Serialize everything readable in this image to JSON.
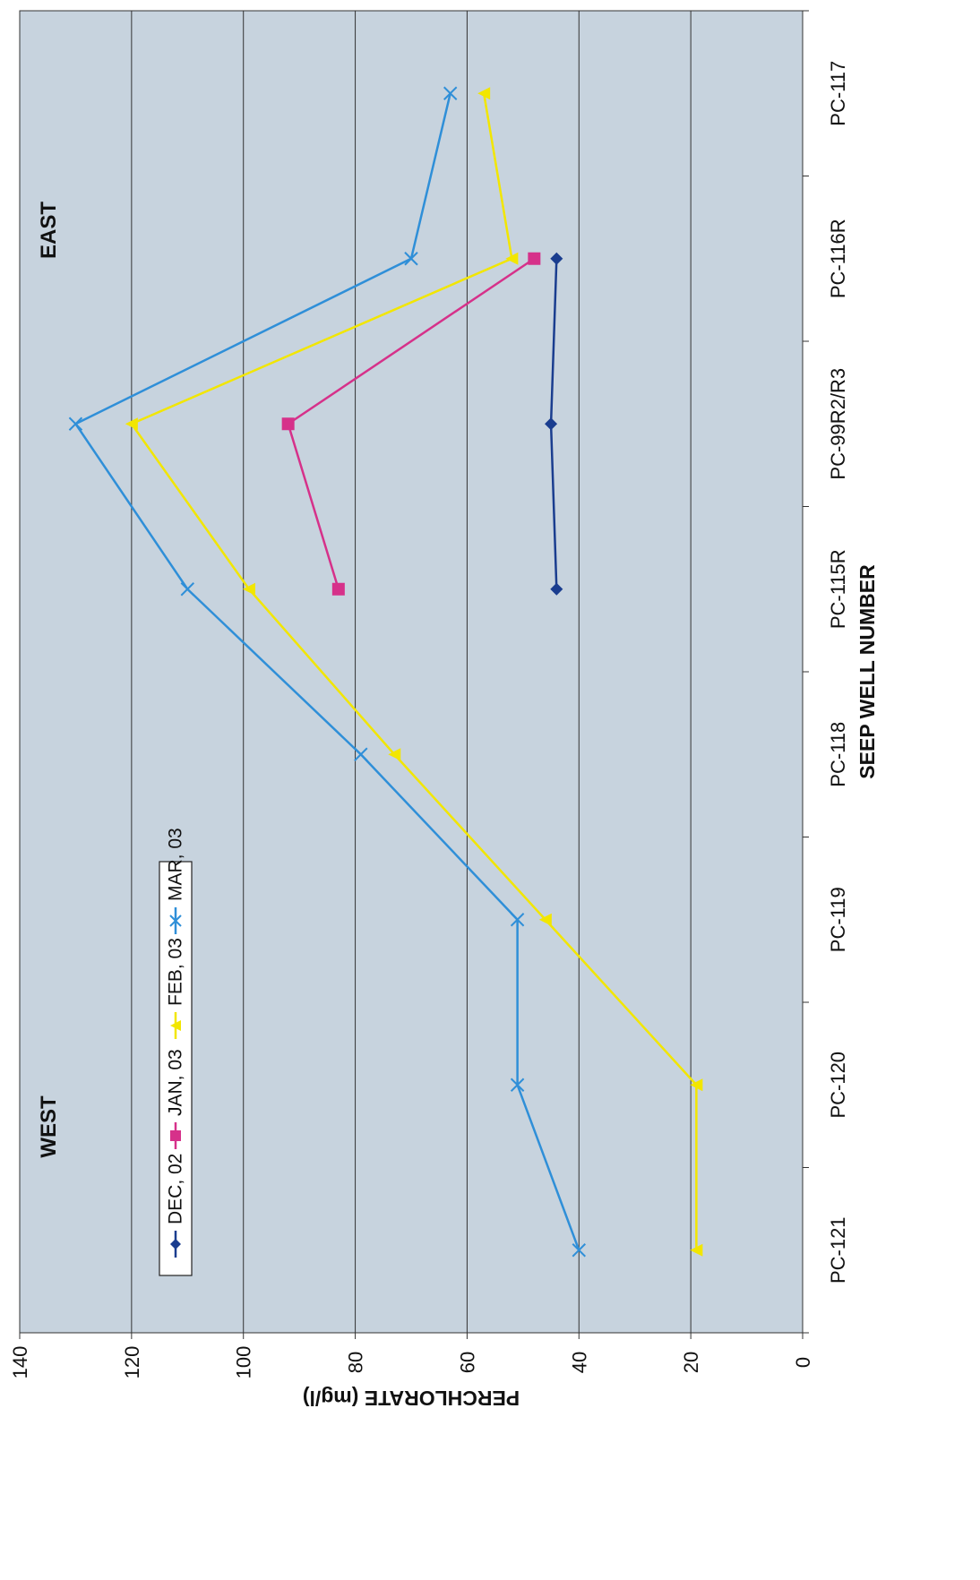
{
  "chart_data": {
    "type": "line",
    "orientation": "rotated-90-ccw",
    "xlabel": "SEEP WELL NUMBER",
    "ylabel": "PERCHLORATE (mg/l)",
    "categories": [
      "PC-121",
      "PC-120",
      "PC-119",
      "PC-118",
      "PC-115R",
      "PC-99R2/R3",
      "PC-116R",
      "PC-117"
    ],
    "ylim": [
      0,
      140
    ],
    "yticks": [
      0,
      20,
      40,
      60,
      80,
      100,
      120,
      140
    ],
    "grid": "horizontal major gridlines",
    "legend_position": "top-left",
    "annotations": [
      {
        "text": "WEST",
        "category": "PC-121",
        "position": "left"
      },
      {
        "text": "EAST",
        "category": "PC-116R",
        "position": "right"
      }
    ],
    "series": [
      {
        "name": "DEC, 02",
        "color": "#1a3d8f",
        "marker": "diamond",
        "values": [
          null,
          null,
          null,
          null,
          44,
          45,
          44,
          null
        ]
      },
      {
        "name": "JAN, 03",
        "color": "#d6318a",
        "marker": "square",
        "values": [
          null,
          null,
          null,
          null,
          83,
          92,
          48,
          null
        ]
      },
      {
        "name": "FEB, 03",
        "color": "#f2e600",
        "marker": "triangle",
        "values": [
          19,
          19,
          46,
          73,
          99,
          120,
          52,
          57
        ]
      },
      {
        "name": "MAR, 03",
        "color": "#2f8fd8",
        "marker": "x",
        "values": [
          40,
          51,
          51,
          79,
          110,
          130,
          70,
          63
        ]
      }
    ],
    "plot_background": "#c7d3de"
  }
}
